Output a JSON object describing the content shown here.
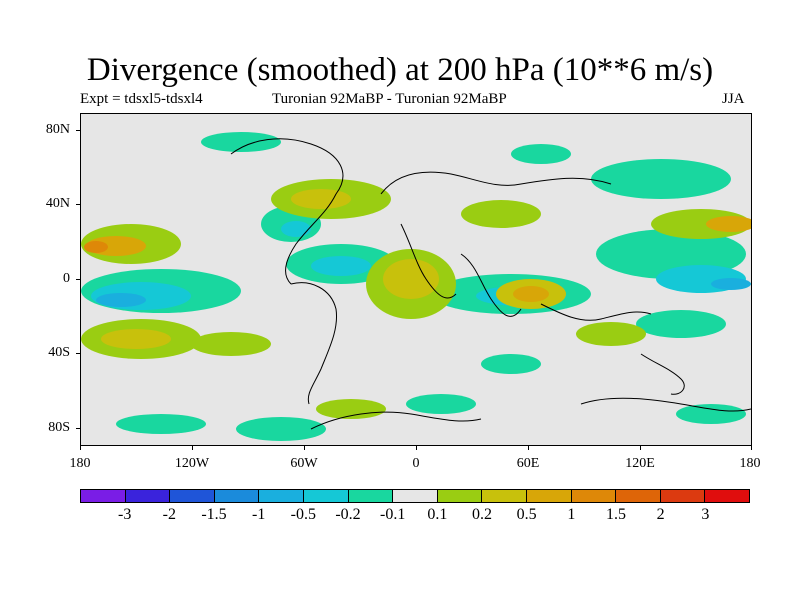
{
  "title": "Divergence (smoothed) at 200 hPa (10**6 m/s)",
  "subtitle_left": "Expt = tdsxl5-tdsxl4",
  "subtitle_center": "Turonian  92MaBP - Turonian  92MaBP",
  "subtitle_right": "JJA",
  "y_axis_labels": [
    "80N",
    "40N",
    "0",
    "40S",
    "80S"
  ],
  "x_axis_labels": [
    "180",
    "120W",
    "60W",
    "0",
    "60E",
    "120E",
    "180"
  ],
  "colorbar": {
    "colors": [
      "#7a1de6",
      "#3a23dc",
      "#1f55d8",
      "#1b8bdb",
      "#1aafde",
      "#15c8d6",
      "#19d79f",
      "#e6e6e6",
      "#9acd12",
      "#c8c10c",
      "#d8a608",
      "#de8808",
      "#de6508",
      "#dc3a10",
      "#e00d0d"
    ],
    "labels": [
      "-3",
      "-2",
      "-1.5",
      "-1",
      "-0.5",
      "-0.2",
      "-0.1",
      "0.1",
      "0.2",
      "0.5",
      "1",
      "1.5",
      "2",
      "3"
    ]
  }
}
